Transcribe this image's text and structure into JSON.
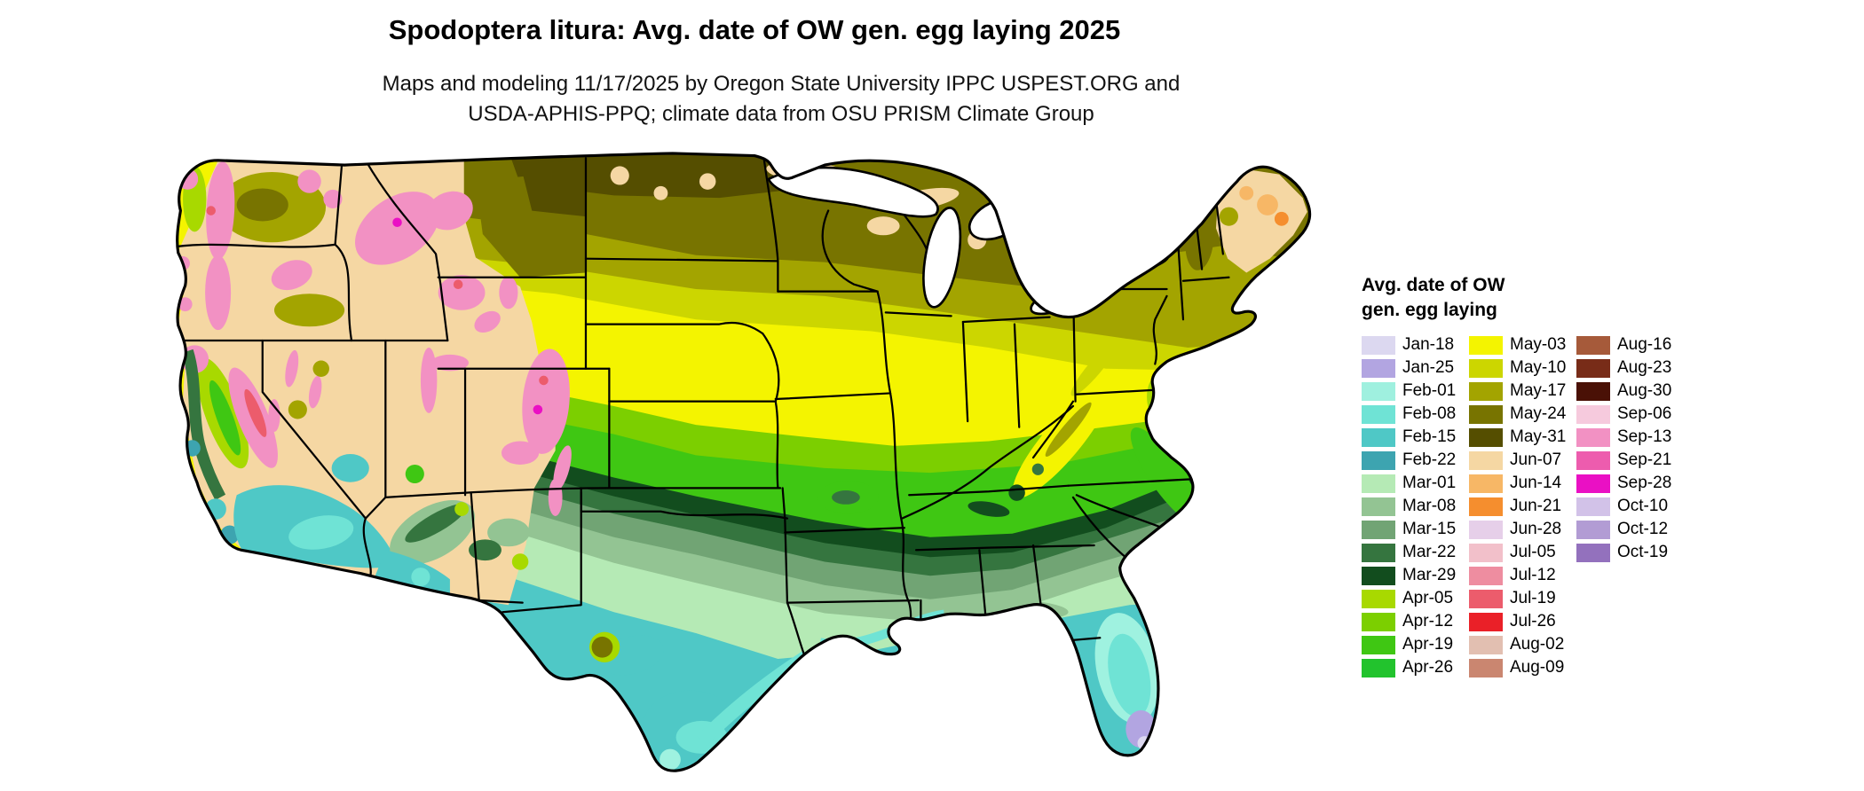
{
  "header": {
    "title": "Spodoptera litura: Avg. date of OW gen. egg laying 2025",
    "subtitle_line1": "Maps and modeling 11/17/2025 by Oregon State University IPPC USPEST.ORG and",
    "subtitle_line2": "USDA-APHIS-PPQ; climate data from OSU PRISM Climate Group"
  },
  "legend": {
    "title_line1": "Avg. date of OW",
    "title_line2": "gen. egg laying",
    "columns": [
      {
        "entries": [
          {
            "label": "Jan-18",
            "color": "#dcd8f0"
          },
          {
            "label": "Jan-25",
            "color": "#b2a5e1"
          },
          {
            "label": "Feb-01",
            "color": "#9ff0df"
          },
          {
            "label": "Feb-08",
            "color": "#6fe3d5"
          },
          {
            "label": "Feb-15",
            "color": "#4fc8c6"
          },
          {
            "label": "Feb-22",
            "color": "#3da4b0"
          },
          {
            "label": "Mar-01",
            "color": "#b5eab5"
          },
          {
            "label": "Mar-08",
            "color": "#93c493"
          },
          {
            "label": "Mar-15",
            "color": "#71a474"
          },
          {
            "label": "Mar-22",
            "color": "#35753f"
          },
          {
            "label": "Mar-29",
            "color": "#124d1e"
          },
          {
            "label": "Apr-05",
            "color": "#a8d900"
          },
          {
            "label": "Apr-12",
            "color": "#7ccf00"
          },
          {
            "label": "Apr-19",
            "color": "#3fc713"
          },
          {
            "label": "Apr-26",
            "color": "#22c32d"
          }
        ]
      },
      {
        "entries": [
          {
            "label": "May-03",
            "color": "#f4f400"
          },
          {
            "label": "May-10",
            "color": "#ccd600"
          },
          {
            "label": "May-17",
            "color": "#a3a400"
          },
          {
            "label": "May-24",
            "color": "#787400"
          },
          {
            "label": "May-31",
            "color": "#554e00"
          },
          {
            "label": "Jun-07",
            "color": "#f5d7a3"
          },
          {
            "label": "Jun-14",
            "color": "#f7b766"
          },
          {
            "label": "Jun-21",
            "color": "#f58e2e"
          },
          {
            "label": "Jun-28",
            "color": "#e6cfe9"
          },
          {
            "label": "Jul-05",
            "color": "#f2c0ca"
          },
          {
            "label": "Jul-12",
            "color": "#ee8da0"
          },
          {
            "label": "Jul-19",
            "color": "#ec5c6c"
          },
          {
            "label": "Jul-26",
            "color": "#ea2028"
          },
          {
            "label": "Aug-02",
            "color": "#e2bfb1"
          },
          {
            "label": "Aug-09",
            "color": "#ca8670"
          }
        ]
      },
      {
        "entries": [
          {
            "label": "Aug-16",
            "color": "#a65a3a"
          },
          {
            "label": "Aug-23",
            "color": "#782c18"
          },
          {
            "label": "Aug-30",
            "color": "#4a1106"
          },
          {
            "label": "Sep-06",
            "color": "#f6cadd"
          },
          {
            "label": "Sep-13",
            "color": "#f291c3"
          },
          {
            "label": "Sep-21",
            "color": "#ed5cae"
          },
          {
            "label": "Sep-28",
            "color": "#ea10c4"
          },
          {
            "label": "Oct-10",
            "color": "#d2c2e8"
          },
          {
            "label": "Oct-12",
            "color": "#b29cd4"
          },
          {
            "label": "Oct-19",
            "color": "#9371bd"
          }
        ]
      }
    ]
  }
}
